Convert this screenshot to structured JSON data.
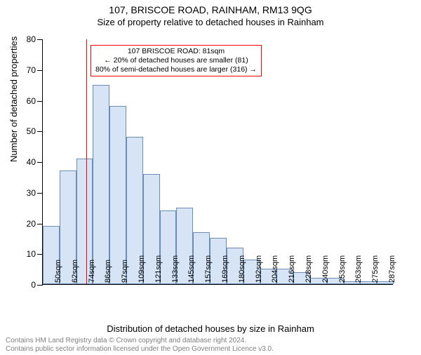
{
  "title": "107, BRISCOE ROAD, RAINHAM, RM13 9QG",
  "subtitle": "Size of property relative to detached houses in Rainham",
  "chart": {
    "type": "histogram",
    "ylabel": "Number of detached properties",
    "xlabel": "Distribution of detached houses by size in Rainham",
    "ylim": [
      0,
      80
    ],
    "ytick_step": 10,
    "yticks": [
      0,
      10,
      20,
      30,
      40,
      50,
      60,
      70,
      80
    ],
    "x_start": 50,
    "x_bin_width": 12,
    "x_end": 300,
    "x_labels": [
      "50sqm",
      "62sqm",
      "74sqm",
      "86sqm",
      "97sqm",
      "109sqm",
      "121sqm",
      "133sqm",
      "145sqm",
      "157sqm",
      "169sqm",
      "180sqm",
      "192sqm",
      "204sqm",
      "216sqm",
      "228sqm",
      "240sqm",
      "253sqm",
      "263sqm",
      "275sqm",
      "287sqm"
    ],
    "values": [
      19,
      37,
      41,
      65,
      58,
      48,
      36,
      24,
      25,
      17,
      15,
      12,
      8,
      5,
      5,
      4,
      2,
      2,
      1,
      1,
      1
    ],
    "bar_fill": "#d6e4f5",
    "bar_stroke": "#6b8cb3",
    "background_color": "#ffffff",
    "marker_x": 81,
    "marker_color": "#ff0000"
  },
  "annotation": {
    "line1": "107 BRISCOE ROAD: 81sqm",
    "line2": "← 20% of detached houses are smaller (81)",
    "line3": "80% of semi-detached houses are larger (316) →",
    "border_color": "#ff0000"
  },
  "footer": {
    "line1": "Contains HM Land Registry data © Crown copyright and database right 2024.",
    "line2": "Contains public sector information licensed under the Open Government Licence v3.0."
  }
}
